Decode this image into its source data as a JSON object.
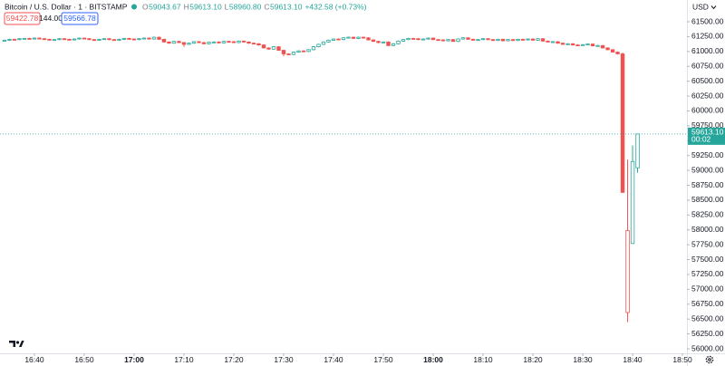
{
  "chart_data": {
    "type": "candlestick",
    "title": "Bitcoin / U.S. Dollar · 1 · BITSTAMP",
    "header_values": [
      {
        "key": "O",
        "text": "59043.67"
      },
      {
        "key": "H",
        "text": "59613.10"
      },
      {
        "key": "L",
        "text": "58960.80"
      },
      {
        "key": "C",
        "text": "59613.10"
      }
    ],
    "change": "+432.58 (+0.73%)",
    "sell_price": "59422.78",
    "spread": "144.00",
    "buy_price": "59566.78",
    "currency": "USD",
    "price_label": "59613.10",
    "countdown": "00:02",
    "up_color": "#26a69a",
    "down_color": "#ef5350",
    "grid": false,
    "x": [
      34,
      35,
      36,
      37,
      38,
      39,
      40,
      41,
      42,
      43,
      44,
      45,
      46,
      47,
      48,
      49,
      50,
      51,
      52,
      53,
      54,
      55,
      56,
      57,
      58,
      59,
      60,
      61,
      62,
      63,
      64,
      65,
      66,
      67,
      68,
      69,
      70,
      71,
      72,
      73,
      74,
      75,
      76,
      77,
      78,
      79,
      80,
      81,
      82,
      83,
      84,
      85,
      86,
      87,
      88,
      89,
      90,
      91,
      92,
      93,
      94,
      95,
      96,
      97,
      98,
      99,
      100,
      101,
      102,
      103,
      104,
      105,
      106,
      107,
      108,
      109,
      110,
      111,
      112,
      113,
      114,
      115,
      116,
      117,
      118,
      119,
      120,
      121,
      122,
      123,
      124,
      125,
      126,
      127,
      128,
      129,
      130,
      131,
      132,
      133,
      134,
      135,
      136,
      137,
      138,
      139,
      140,
      141,
      142,
      143,
      144,
      145,
      146,
      147,
      148,
      149,
      150,
      151,
      152,
      153,
      154,
      155,
      156,
      157,
      158,
      159,
      160,
      161
    ],
    "open": [
      61180,
      61190,
      61205,
      61200,
      61215,
      61220,
      61210,
      61225,
      61215,
      61205,
      61195,
      61200,
      61215,
      61205,
      61195,
      61210,
      61225,
      61215,
      61200,
      61190,
      61205,
      61215,
      61200,
      61190,
      61205,
      61220,
      61210,
      61200,
      61215,
      61225,
      61210,
      61240,
      61205,
      61160,
      61140,
      61170,
      61150,
      61120,
      61140,
      61165,
      61150,
      61130,
      61155,
      61160,
      61145,
      61170,
      61165,
      61150,
      61175,
      61160,
      61140,
      61130,
      61110,
      61060,
      61040,
      61080,
      61020,
      60960,
      60950,
      60990,
      61010,
      61000,
      61030,
      61080,
      61120,
      61160,
      61190,
      61210,
      61200,
      61230,
      61240,
      61220,
      61240,
      61230,
      61195,
      61170,
      61150,
      61160,
      61100,
      61130,
      61175,
      61200,
      61220,
      61215,
      61200,
      61210,
      61225,
      61200,
      61195,
      61180,
      61200,
      61170,
      61210,
      61230,
      61205,
      61190,
      61200,
      61215,
      61200,
      61185,
      61205,
      61180,
      61200,
      61185,
      61205,
      61195,
      61210,
      61190,
      61215,
      61175,
      61160,
      61165,
      61140,
      61120,
      61130,
      61110,
      61105,
      61115,
      61125,
      61095,
      61100,
      61060,
      61030,
      60990,
      60960,
      56610,
      57770,
      59043.67
    ],
    "high": [
      61200,
      61215,
      61215,
      61225,
      61230,
      61230,
      61235,
      61235,
      61225,
      61215,
      61210,
      61225,
      61225,
      61215,
      61220,
      61235,
      61235,
      61225,
      61210,
      61215,
      61225,
      61225,
      61210,
      61215,
      61230,
      61230,
      61220,
      61225,
      61235,
      61235,
      61250,
      61250,
      61215,
      61170,
      61180,
      61180,
      61160,
      61150,
      61175,
      61175,
      61160,
      61165,
      61170,
      61170,
      61180,
      61180,
      61175,
      61185,
      61185,
      61170,
      61150,
      61140,
      61120,
      61070,
      61090,
      61090,
      61030,
      60970,
      61000,
      61020,
      61020,
      61040,
      61090,
      61130,
      61170,
      61200,
      61220,
      61220,
      61240,
      61250,
      61250,
      61250,
      61250,
      61240,
      61205,
      61180,
      61170,
      61170,
      61140,
      61185,
      61210,
      61230,
      61230,
      61225,
      61220,
      61235,
      61235,
      61210,
      61205,
      61210,
      61210,
      61220,
      61240,
      61240,
      61215,
      61210,
      61225,
      61225,
      61210,
      61215,
      61215,
      61210,
      61210,
      61215,
      61215,
      61220,
      61220,
      61225,
      61225,
      61185,
      61175,
      61175,
      61150,
      61140,
      61140,
      61120,
      61125,
      61135,
      61135,
      61110,
      61110,
      61070,
      61040,
      61000,
      60980,
      59180,
      59420,
      59613.1
    ],
    "low": [
      61170,
      61180,
      61190,
      61190,
      61205,
      61200,
      61200,
      61205,
      61195,
      61185,
      61185,
      61190,
      61195,
      61185,
      61185,
      61200,
      61205,
      61190,
      61180,
      61180,
      61195,
      61190,
      61180,
      61180,
      61195,
      61200,
      61190,
      61190,
      61205,
      61200,
      61200,
      61195,
      61150,
      61130,
      61130,
      61140,
      61080,
      61110,
      61130,
      61140,
      61120,
      61120,
      61145,
      61135,
      61135,
      61155,
      61140,
      61140,
      61150,
      61130,
      61120,
      61100,
      61050,
      61030,
      61030,
      61010,
      60920,
      60940,
      60940,
      60980,
      60990,
      60990,
      61020,
      61070,
      61110,
      61150,
      61180,
      61190,
      61190,
      61220,
      61210,
      61210,
      61220,
      61185,
      61160,
      61140,
      61140,
      61090,
      61090,
      61120,
      61165,
      61190,
      61205,
      61190,
      61190,
      61200,
      61190,
      61185,
      61170,
      61170,
      61160,
      61160,
      61200,
      61195,
      61180,
      61180,
      61190,
      61190,
      61175,
      61175,
      61170,
      61170,
      61175,
      61175,
      61185,
      61185,
      61180,
      61180,
      61165,
      61150,
      61150,
      61130,
      61110,
      61110,
      61100,
      61095,
      61095,
      61105,
      61085,
      61085,
      61050,
      61020,
      60980,
      60950,
      58630,
      56450,
      57770,
      58960.8
    ],
    "close": [
      61190,
      61205,
      61200,
      61215,
      61220,
      61210,
      61225,
      61215,
      61205,
      61195,
      61200,
      61215,
      61205,
      61195,
      61210,
      61225,
      61215,
      61200,
      61190,
      61205,
      61215,
      61200,
      61190,
      61205,
      61220,
      61210,
      61200,
      61215,
      61225,
      61210,
      61240,
      61205,
      61160,
      61140,
      61170,
      61150,
      61120,
      61140,
      61165,
      61150,
      61130,
      61155,
      61160,
      61145,
      61170,
      61165,
      61150,
      61175,
      61160,
      61140,
      61130,
      61110,
      61060,
      61040,
      61080,
      61020,
      60960,
      60950,
      60990,
      61010,
      61000,
      61030,
      61080,
      61120,
      61160,
      61190,
      61210,
      61200,
      61230,
      61240,
      61220,
      61240,
      61230,
      61195,
      61170,
      61150,
      61160,
      61100,
      61130,
      61175,
      61200,
      61220,
      61215,
      61200,
      61210,
      61225,
      61200,
      61195,
      61180,
      61200,
      61170,
      61210,
      61230,
      61205,
      61190,
      61200,
      61215,
      61200,
      61185,
      61205,
      61180,
      61200,
      61185,
      61205,
      61195,
      61210,
      61190,
      61215,
      61175,
      61160,
      61165,
      61140,
      61120,
      61130,
      61110,
      61105,
      61115,
      61125,
      61095,
      61100,
      61060,
      61030,
      60990,
      60960,
      58630,
      57990,
      59150,
      59613.1
    ],
    "xlim": [
      33.1,
      170.9
    ],
    "xticks": [
      {
        "value": 40,
        "label": "16:40"
      },
      {
        "value": 50,
        "label": "16:50"
      },
      {
        "value": 60,
        "label": "17:00"
      },
      {
        "value": 70,
        "label": "17:10"
      },
      {
        "value": 80,
        "label": "17:20"
      },
      {
        "value": 90,
        "label": "17:30"
      },
      {
        "value": 100,
        "label": "17:40"
      },
      {
        "value": 110,
        "label": "17:50"
      },
      {
        "value": 120,
        "label": "18:00"
      },
      {
        "value": 130,
        "label": "18:10"
      },
      {
        "value": 140,
        "label": "18:20"
      },
      {
        "value": 150,
        "label": "18:30"
      },
      {
        "value": 160,
        "label": "18:40"
      },
      {
        "value": 170,
        "label": "18:50"
      }
    ],
    "ylim": [
      55924,
      61866
    ],
    "yticks": [
      {
        "value": 56000,
        "label": "56000.00"
      },
      {
        "value": 56250,
        "label": "56250.00"
      },
      {
        "value": 56500,
        "label": "56500.00"
      },
      {
        "value": 56750,
        "label": "56750.00"
      },
      {
        "value": 57000,
        "label": "57000.00"
      },
      {
        "value": 57250,
        "label": "57250.00"
      },
      {
        "value": 57500,
        "label": "57500.00"
      },
      {
        "value": 57750,
        "label": "57750.00"
      },
      {
        "value": 58000,
        "label": "58000.00"
      },
      {
        "value": 58250,
        "label": "58250.00"
      },
      {
        "value": 58500,
        "label": "58500.00"
      },
      {
        "value": 58750,
        "label": "58750.00"
      },
      {
        "value": 59000,
        "label": "59000.00"
      },
      {
        "value": 59250,
        "label": "59250.00"
      },
      {
        "value": 59500,
        "label": "59500.00"
      },
      {
        "value": 59750,
        "label": "59750.00"
      },
      {
        "value": 60000,
        "label": "60000.00"
      },
      {
        "value": 60250,
        "label": "60250.00"
      },
      {
        "value": 60500,
        "label": "60500.00"
      },
      {
        "value": 60750,
        "label": "60750.00"
      },
      {
        "value": 61000,
        "label": "61000.00"
      },
      {
        "value": 61250,
        "label": "61250.00"
      },
      {
        "value": 61500,
        "label": "61500.00"
      }
    ]
  }
}
